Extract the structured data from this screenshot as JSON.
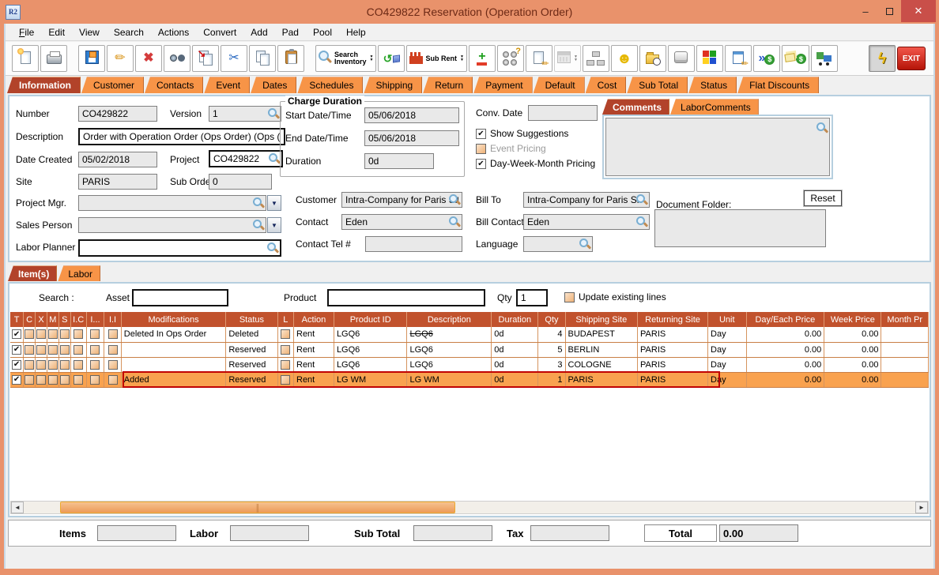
{
  "window": {
    "app_initials": "R2",
    "title": "CO429822 Reservation (Operation Order)",
    "minimize_glyph": "–",
    "close_glyph": "✕"
  },
  "menu": [
    "File",
    "Edit",
    "View",
    "Search",
    "Actions",
    "Convert",
    "Add",
    "Pad",
    "Pool",
    "Help"
  ],
  "toolbar": {
    "buttons": [
      {
        "name": "new-button",
        "icon": "new-document-icon"
      },
      {
        "name": "print-button",
        "icon": "print-icon"
      },
      {
        "name": "save-button",
        "icon": "save-icon",
        "gap": true
      },
      {
        "name": "edit-button",
        "icon": "pencil-icon"
      },
      {
        "name": "delete-button",
        "icon": "delete-x-icon"
      },
      {
        "name": "find-button",
        "icon": "binoculars-icon"
      },
      {
        "name": "copy-special-button",
        "icon": "copy-arrow-icon"
      },
      {
        "name": "cut-button",
        "icon": "scissors-icon"
      },
      {
        "name": "copy-button",
        "icon": "copy-icon"
      },
      {
        "name": "paste-button",
        "icon": "clipboard-icon"
      },
      {
        "name": "search-inventory-button",
        "icon": "magnifier-icon",
        "label": [
          "Search",
          "Inventory"
        ],
        "dropdown": true,
        "gap": true
      },
      {
        "name": "convert-button",
        "icon": "convert-3d-icon"
      },
      {
        "name": "sub-rent-button",
        "icon": "factory-icon",
        "label": [
          "Sub Rent"
        ],
        "dropdown": true
      },
      {
        "name": "add-remove-button",
        "icon": "plus-minus-icon"
      },
      {
        "name": "group-question-button",
        "icon": "circles-question-icon"
      },
      {
        "name": "notepad-button",
        "icon": "notepad-pencil-icon"
      },
      {
        "name": "calendar-button",
        "icon": "calendar-icon",
        "dropdown": true,
        "disabled": true
      },
      {
        "name": "hierarchy-button",
        "icon": "hierarchy-icon"
      },
      {
        "name": "smiley-button",
        "icon": "smiley-icon"
      },
      {
        "name": "folder-time-button",
        "icon": "folder-clock-icon"
      },
      {
        "name": "shortcut-key-button",
        "icon": "keyboard-key-icon"
      },
      {
        "name": "inventory-blocks-button",
        "icon": "color-blocks-icon"
      },
      {
        "name": "edit-form-button",
        "icon": "form-pencil-icon"
      },
      {
        "name": "billing-forward-button",
        "icon": "dollar-arrows-icon"
      },
      {
        "name": "invoice-notes-button",
        "icon": "dollar-notes-icon"
      },
      {
        "name": "delivery-truck-button",
        "icon": "truck-icon"
      },
      {
        "name": "quick-action-button",
        "icon": "lightning-icon",
        "pressed": true,
        "push": true
      },
      {
        "name": "exit-button",
        "icon": "exit",
        "label": [
          "EXIT"
        ],
        "exit": true
      }
    ]
  },
  "tabs": [
    {
      "label": "Information",
      "selected": true
    },
    {
      "label": "Customer"
    },
    {
      "label": "Contacts"
    },
    {
      "label": "Event"
    },
    {
      "label": "Dates"
    },
    {
      "label": "Schedules"
    },
    {
      "label": "Shipping"
    },
    {
      "label": "Return"
    },
    {
      "label": "Payment"
    },
    {
      "label": "Default"
    },
    {
      "label": "Cost"
    },
    {
      "label": "Sub Total"
    },
    {
      "label": "Status"
    },
    {
      "label": "Flat Discounts"
    }
  ],
  "info": {
    "number_label": "Number",
    "number_value": "CO429822",
    "version_label": "Version",
    "version_value": "1",
    "description_label": "Description",
    "description_value": "Order with Operation Order (Ops Order) (Ops (",
    "date_created_label": "Date Created",
    "date_created_value": "05/02/2018",
    "project_label": "Project",
    "project_value": "CO429822",
    "site_label": "Site",
    "site_value": "PARIS",
    "sub_orders_label": "Sub Orders",
    "sub_orders_value": "0",
    "project_mgr_label": "Project Mgr.",
    "project_mgr_value": "",
    "sales_person_label": "Sales Person",
    "sales_person_value": "",
    "labor_planner_label": "Labor Planner",
    "labor_planner_value": "",
    "charge_duration": {
      "legend": "Charge Duration",
      "start_label": "Start Date/Time",
      "start_value": "05/06/2018",
      "end_label": "End Date/Time",
      "end_value": "05/06/2018",
      "duration_label": "Duration",
      "duration_value": "0d"
    },
    "conv_date_label": "Conv. Date",
    "conv_date_value": "",
    "checkboxes": [
      {
        "label": "Show Suggestions",
        "checked": true
      },
      {
        "label": "Event Pricing",
        "checked": false,
        "disabled": true
      },
      {
        "label": "Day-Week-Month Pricing",
        "checked": true
      }
    ],
    "customer_label": "Customer",
    "customer_value": "Intra-Company for Paris Sit",
    "bill_to_label": "Bill To",
    "bill_to_value": "Intra-Company for Paris Sit",
    "contact_label": "Contact",
    "contact_value": "Eden",
    "bill_contact_label": "Bill Contact",
    "bill_contact_value": "Eden",
    "contact_tel_label": "Contact Tel #",
    "contact_tel_value": "",
    "language_label": "Language",
    "language_value": "",
    "comments_tabs": [
      {
        "label": "Comments",
        "selected": true
      },
      {
        "label": "LaborComments"
      }
    ],
    "comments_value": "",
    "document_folder_label": "Document Folder:",
    "reset_button": "Reset",
    "document_folder_value": ""
  },
  "items_section": {
    "tabs": [
      {
        "label": "Item(s)",
        "selected": true
      },
      {
        "label": "Labor"
      }
    ],
    "search_label": "Search :",
    "asset_label": "Asset",
    "asset_value": "",
    "product_label": "Product",
    "product_value": "",
    "qty_label": "Qty",
    "qty_value": "1",
    "update_lines_label": "Update existing lines",
    "table": {
      "columns": [
        "T",
        "C",
        "X",
        "M",
        "S",
        "I.C",
        "I...",
        "I.I",
        "Modifications",
        "Status",
        "L",
        "Action",
        "Product ID",
        "Description",
        "Duration",
        "Qty",
        "Shipping Site",
        "Returning Site",
        "Unit",
        "Day/Each Price",
        "Week Price",
        "Month Pr"
      ],
      "rows": [
        {
          "checks": [
            true,
            false,
            false,
            false,
            false,
            false,
            false,
            false
          ],
          "modifications": "Deleted In Ops Order",
          "status": "Deleted",
          "l": false,
          "action": "Rent",
          "product_id": "LGQ6",
          "description": "LGQ6",
          "desc_strike": true,
          "duration": "0d",
          "qty": "4",
          "shipping_site": "BUDAPEST",
          "returning_site": "PARIS",
          "unit": "Day",
          "day_price": "0.00",
          "week_price": "0.00",
          "month_price": ""
        },
        {
          "checks": [
            true,
            false,
            false,
            false,
            false,
            false,
            false,
            false
          ],
          "modifications": "",
          "status": "Reserved",
          "l": false,
          "action": "Rent",
          "product_id": "LGQ6",
          "description": "LGQ6",
          "duration": "0d",
          "qty": "5",
          "shipping_site": "BERLIN",
          "returning_site": "PARIS",
          "unit": "Day",
          "day_price": "0.00",
          "week_price": "0.00",
          "month_price": ""
        },
        {
          "checks": [
            true,
            false,
            false,
            false,
            false,
            false,
            false,
            false
          ],
          "modifications": "",
          "status": "Reserved",
          "l": false,
          "action": "Rent",
          "product_id": "LGQ6",
          "description": "LGQ6",
          "duration": "0d",
          "qty": "3",
          "shipping_site": "COLOGNE",
          "returning_site": "PARIS",
          "unit": "Day",
          "day_price": "0.00",
          "week_price": "0.00",
          "month_price": ""
        },
        {
          "checks": [
            true,
            false,
            false,
            false,
            false,
            false,
            false,
            false
          ],
          "highlight": true,
          "modifications": "Added",
          "status": "Reserved",
          "l": false,
          "action": "Rent",
          "product_id": "LG WM",
          "description": "LG WM",
          "duration": "0d",
          "qty": "1",
          "shipping_site": "PARIS",
          "returning_site": "PARIS",
          "unit": "Day",
          "day_price": "0.00",
          "week_price": "0.00",
          "month_price": ""
        }
      ]
    }
  },
  "totals": {
    "items_label": "Items",
    "items_value": "",
    "labor_label": "Labor",
    "labor_value": "",
    "sub_total_label": "Sub Total",
    "sub_total_value": "",
    "tax_label": "Tax",
    "tax_value": "",
    "total_label": "Total",
    "total_value": "0.00"
  }
}
